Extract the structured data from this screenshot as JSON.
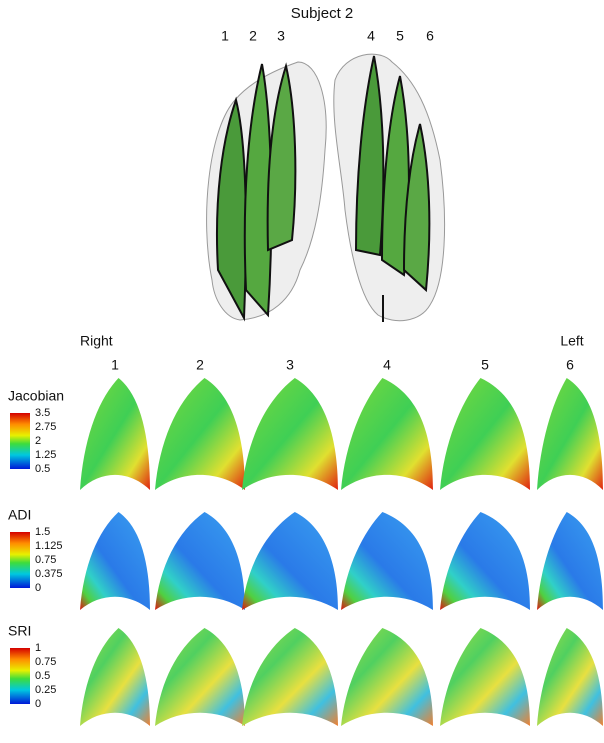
{
  "title": "Subject 2",
  "slice_labels": [
    "1",
    "2",
    "3",
    "4",
    "5",
    "6"
  ],
  "side_labels": {
    "right": "Right",
    "left": "Left"
  },
  "columns": [
    "1",
    "2",
    "3",
    "4",
    "5",
    "6"
  ],
  "rows": [
    {
      "name": "Jacobian",
      "ticks": [
        "3.5",
        "2.75",
        "2",
        "1.25",
        "0.5"
      ]
    },
    {
      "name": "ADI",
      "ticks": [
        "1.5",
        "1.125",
        "0.75",
        "0.375",
        "0"
      ]
    },
    {
      "name": "SRI",
      "ticks": [
        "1",
        "0.75",
        "0.5",
        "0.25",
        "0"
      ]
    }
  ]
}
